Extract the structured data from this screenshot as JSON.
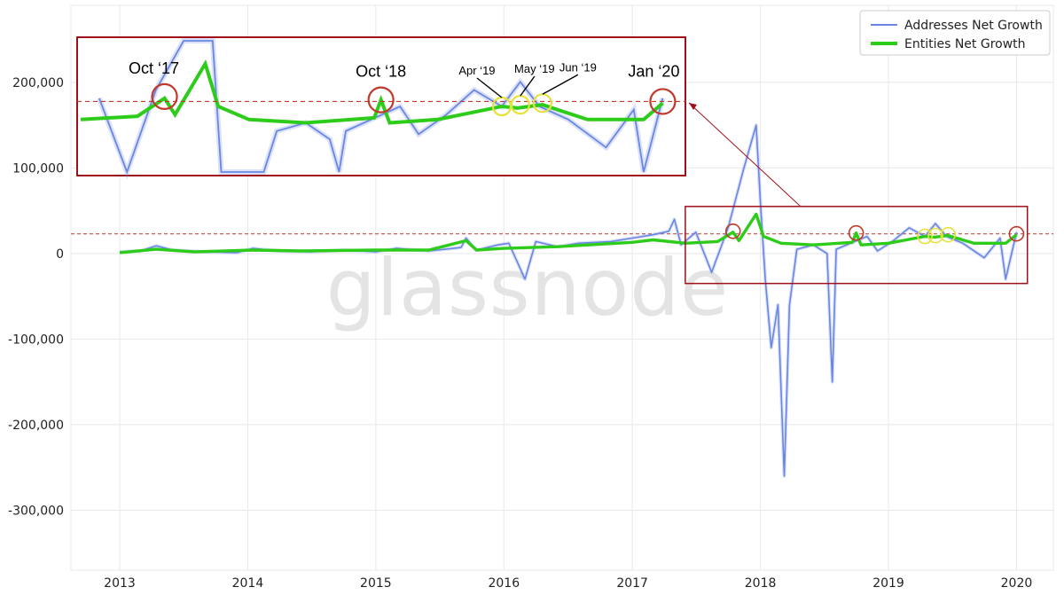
{
  "chart_data": {
    "type": "line",
    "title": "",
    "xlabel": "",
    "ylabel": "",
    "watermark": "glassnode",
    "x_ticks": [
      "2013",
      "2014",
      "2015",
      "2016",
      "2017",
      "2018",
      "2019",
      "2020"
    ],
    "xlim": [
      "2012-08-15",
      "2020-04-15"
    ],
    "y_ticks": [
      200000,
      100000,
      0,
      -100000,
      -200000,
      -300000
    ],
    "y_tick_labels": [
      "200,000",
      "100,000",
      "0",
      "-100,000",
      "-200,000",
      "-300,000"
    ],
    "ylim": [
      -370000,
      290000
    ],
    "grid": true,
    "legend_position": "top-right",
    "reference_line": {
      "y": 23000,
      "color": "#c0392b",
      "style": "dashed"
    },
    "series": [
      {
        "name": "Addresses Net Growth",
        "color": "#6a86e4",
        "points": [
          [
            "2013-01-01",
            2000
          ],
          [
            "2013-03-01",
            3000
          ],
          [
            "2013-04-15",
            9000
          ],
          [
            "2013-06-01",
            4000
          ],
          [
            "2013-09-01",
            2000
          ],
          [
            "2013-12-01",
            1000
          ],
          [
            "2014-01-15",
            6000
          ],
          [
            "2014-04-01",
            3000
          ],
          [
            "2014-07-01",
            2000
          ],
          [
            "2014-10-01",
            4000
          ],
          [
            "2015-01-01",
            2000
          ],
          [
            "2015-03-01",
            6000
          ],
          [
            "2015-06-01",
            3000
          ],
          [
            "2015-09-01",
            7000
          ],
          [
            "2015-09-15",
            18000
          ],
          [
            "2015-10-15",
            4000
          ],
          [
            "2015-12-15",
            10000
          ],
          [
            "2016-01-15",
            12000
          ],
          [
            "2016-03-01",
            -30000
          ],
          [
            "2016-04-01",
            14000
          ],
          [
            "2016-06-01",
            8000
          ],
          [
            "2016-08-01",
            12000
          ],
          [
            "2016-11-01",
            14000
          ],
          [
            "2017-01-01",
            18000
          ],
          [
            "2017-03-01",
            22000
          ],
          [
            "2017-04-15",
            26000
          ],
          [
            "2017-05-01",
            40000
          ],
          [
            "2017-05-20",
            10000
          ],
          [
            "2017-07-01",
            25000
          ],
          [
            "2017-08-15",
            -22000
          ],
          [
            "2017-10-01",
            30000
          ],
          [
            "2017-11-15",
            100000
          ],
          [
            "2017-12-20",
            150000
          ],
          [
            "2018-01-01",
            60000
          ],
          [
            "2018-01-15",
            -30000
          ],
          [
            "2018-02-01",
            -110000
          ],
          [
            "2018-02-20",
            -60000
          ],
          [
            "2018-03-10",
            -260000
          ],
          [
            "2018-03-25",
            -60000
          ],
          [
            "2018-04-15",
            5000
          ],
          [
            "2018-06-01",
            10000
          ],
          [
            "2018-07-10",
            0
          ],
          [
            "2018-07-25",
            -150000
          ],
          [
            "2018-08-05",
            5000
          ],
          [
            "2018-09-15",
            12000
          ],
          [
            "2018-11-01",
            20000
          ],
          [
            "2018-12-01",
            3000
          ],
          [
            "2019-01-15",
            15000
          ],
          [
            "2019-03-01",
            30000
          ],
          [
            "2019-04-15",
            20000
          ],
          [
            "2019-05-15",
            35000
          ],
          [
            "2019-06-15",
            20000
          ],
          [
            "2019-08-01",
            12000
          ],
          [
            "2019-10-01",
            -5000
          ],
          [
            "2019-11-15",
            18000
          ],
          [
            "2019-12-01",
            -30000
          ],
          [
            "2020-01-01",
            25000
          ]
        ]
      },
      {
        "name": "Entities Net Growth",
        "color": "#2ecc1a",
        "points": [
          [
            "2013-01-01",
            1000
          ],
          [
            "2013-04-15",
            5000
          ],
          [
            "2013-08-01",
            2000
          ],
          [
            "2014-01-15",
            4000
          ],
          [
            "2014-06-01",
            3000
          ],
          [
            "2015-01-01",
            4000
          ],
          [
            "2015-06-01",
            4000
          ],
          [
            "2015-09-15",
            15000
          ],
          [
            "2015-10-15",
            4000
          ],
          [
            "2016-01-01",
            6000
          ],
          [
            "2016-06-01",
            8000
          ],
          [
            "2017-01-01",
            13000
          ],
          [
            "2017-03-01",
            16000
          ],
          [
            "2017-06-01",
            12000
          ],
          [
            "2017-09-01",
            14000
          ],
          [
            "2017-10-15",
            25000
          ],
          [
            "2017-11-01",
            15000
          ],
          [
            "2017-12-20",
            46000
          ],
          [
            "2018-01-10",
            20000
          ],
          [
            "2018-03-01",
            12000
          ],
          [
            "2018-06-01",
            10000
          ],
          [
            "2018-09-20",
            13000
          ],
          [
            "2018-10-01",
            24000
          ],
          [
            "2018-10-15",
            10000
          ],
          [
            "2019-01-01",
            12000
          ],
          [
            "2019-04-15",
            20000
          ],
          [
            "2019-05-10",
            19000
          ],
          [
            "2019-06-20",
            21000
          ],
          [
            "2019-09-01",
            12000
          ],
          [
            "2019-12-01",
            12000
          ],
          [
            "2020-01-01",
            22000
          ]
        ]
      }
    ],
    "annotations": {
      "main_circles": [
        {
          "date": "2017-10-15",
          "y": 26000,
          "color": "#c0392b"
        },
        {
          "date": "2018-10-01",
          "y": 24000,
          "color": "#c0392b"
        },
        {
          "date": "2019-04-15",
          "y": 20000,
          "color": "#e7e23a"
        },
        {
          "date": "2019-05-15",
          "y": 21000,
          "color": "#e7e23a"
        },
        {
          "date": "2019-06-20",
          "y": 22000,
          "color": "#e7e23a"
        },
        {
          "date": "2020-01-01",
          "y": 23000,
          "color": "#c0392b"
        }
      ],
      "zoom_box": {
        "x_range": [
          "2017-06-01",
          "2020-02-01"
        ],
        "y_range": [
          -35000,
          55000
        ],
        "color": "#a0101a"
      },
      "inset": {
        "labels": [
          "Oct ‘17",
          "Oct ‘18",
          "Apr ‘19",
          "May ‘19",
          "Jun ‘19",
          "Jan ‘20"
        ]
      }
    }
  }
}
